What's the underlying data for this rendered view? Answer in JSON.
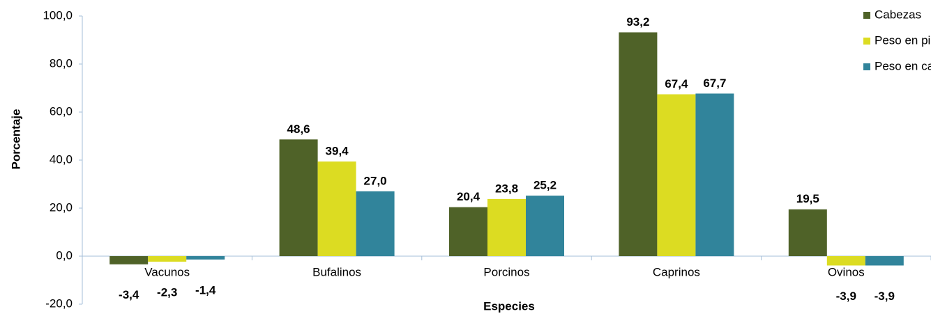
{
  "chart_data": {
    "type": "bar",
    "x_label": "Especies",
    "y_label": "Porcentaje",
    "categories": [
      "Vacunos",
      "Bufalinos",
      "Porcinos",
      "Caprinos",
      "Ovinos"
    ],
    "series": [
      {
        "name": "Cabezas",
        "color": "#4f6228",
        "values": [
          -3.4,
          48.6,
          20.4,
          93.2,
          19.5
        ],
        "value_labels": [
          "-3,4",
          "48,6",
          "20,4",
          "93,2",
          "19,5"
        ]
      },
      {
        "name": "Peso en pie",
        "color": "#dcdc22",
        "values": [
          -2.3,
          39.4,
          23.8,
          67.4,
          -3.9
        ],
        "value_labels": [
          "-2,3",
          "39,4",
          "23,8",
          "67,4",
          "-3,9"
        ]
      },
      {
        "name": "Peso en canal",
        "color": "#31849b",
        "values": [
          -1.4,
          27.0,
          25.2,
          67.7,
          -3.9
        ],
        "value_labels": [
          "-1,4",
          "27,0",
          "25,2",
          "67,7",
          "-3,9"
        ]
      }
    ],
    "ylim": [
      -20,
      100
    ],
    "yticks": [
      {
        "value": -20,
        "label": "-20,0"
      },
      {
        "value": 0,
        "label": "0,0"
      },
      {
        "value": 20,
        "label": "20,0"
      },
      {
        "value": 40,
        "label": "40,0"
      },
      {
        "value": 60,
        "label": "60,0"
      },
      {
        "value": 80,
        "label": "80,0"
      },
      {
        "value": 100,
        "label": "100,0"
      }
    ],
    "legend": "top-right"
  }
}
